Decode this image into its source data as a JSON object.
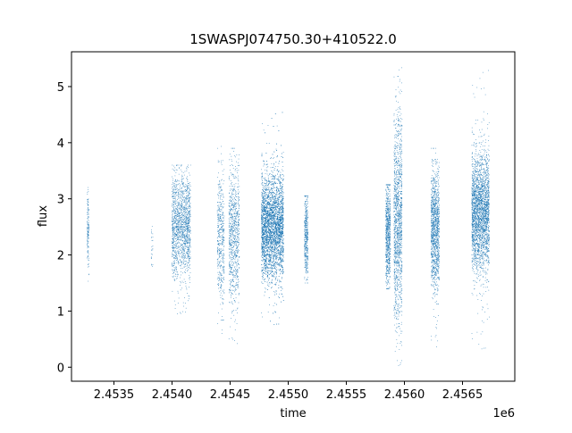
{
  "chart_data": {
    "type": "scatter",
    "title": "1SWASPJ074750.30+410522.0",
    "xlabel": "time",
    "ylabel": "flux",
    "x_offset_label": "1e6",
    "xlim": [
      2453135,
      2456950
    ],
    "ylim": [
      -0.25,
      5.62
    ],
    "x_ticks": [
      2453500,
      2454000,
      2454500,
      2455000,
      2455500,
      2456000,
      2456500
    ],
    "x_tick_labels": [
      "2.4535",
      "2.4540",
      "2.4545",
      "2.4550",
      "2.4555",
      "2.4560",
      "2.4565"
    ],
    "y_ticks": [
      0,
      1,
      2,
      3,
      4,
      5
    ],
    "y_tick_labels": [
      "0",
      "1",
      "2",
      "3",
      "4",
      "5"
    ],
    "grid": false,
    "point_color": "#1f77b4",
    "observing_seasons": [
      {
        "x_start": 2453270,
        "x_end": 2453285,
        "y_center": 2.45,
        "y_spread": 0.35,
        "y_min": 1.3,
        "y_max": 3.3,
        "points": 140
      },
      {
        "x_start": 2453820,
        "x_end": 2453835,
        "y_center": 2.2,
        "y_spread": 0.3,
        "y_min": 1.7,
        "y_max": 2.7,
        "points": 25
      },
      {
        "x_start": 2454000,
        "x_end": 2454160,
        "y_center": 2.5,
        "y_spread": 0.45,
        "y_min": 0.95,
        "y_max": 3.6,
        "points": 1500
      },
      {
        "x_start": 2454390,
        "x_end": 2454450,
        "y_center": 2.3,
        "y_spread": 0.55,
        "y_min": 0.6,
        "y_max": 4.1,
        "points": 450
      },
      {
        "x_start": 2454490,
        "x_end": 2454580,
        "y_center": 2.35,
        "y_spread": 0.6,
        "y_min": 0.25,
        "y_max": 3.9,
        "points": 800
      },
      {
        "x_start": 2454770,
        "x_end": 2454960,
        "y_center": 2.5,
        "y_spread": 0.45,
        "y_min": 0.7,
        "y_max": 4.55,
        "points": 4200
      },
      {
        "x_start": 2455140,
        "x_end": 2455170,
        "y_center": 2.3,
        "y_spread": 0.35,
        "y_min": 1.5,
        "y_max": 3.05,
        "points": 400
      },
      {
        "x_start": 2455840,
        "x_end": 2455880,
        "y_center": 2.4,
        "y_spread": 0.45,
        "y_min": 1.4,
        "y_max": 3.25,
        "points": 700
      },
      {
        "x_start": 2455910,
        "x_end": 2455980,
        "y_center": 2.6,
        "y_spread": 0.9,
        "y_min": -0.05,
        "y_max": 5.35,
        "points": 1300
      },
      {
        "x_start": 2456230,
        "x_end": 2456300,
        "y_center": 2.45,
        "y_spread": 0.5,
        "y_min": 0.3,
        "y_max": 3.9,
        "points": 1200
      },
      {
        "x_start": 2456580,
        "x_end": 2456730,
        "y_center": 2.75,
        "y_spread": 0.5,
        "y_min": 0.25,
        "y_max": 5.3,
        "points": 2600
      }
    ]
  }
}
